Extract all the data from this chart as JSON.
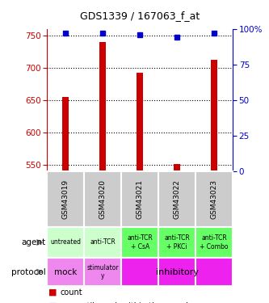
{
  "title": "GDS1339 / 167063_f_at",
  "samples": [
    "GSM43019",
    "GSM43020",
    "GSM43021",
    "GSM43022",
    "GSM43023"
  ],
  "counts": [
    655,
    740,
    692,
    551,
    712
  ],
  "percentile_ranks": [
    97,
    97,
    96,
    94,
    97
  ],
  "ylim_left": [
    540,
    760
  ],
  "ylim_right": [
    0,
    100
  ],
  "yticks_left": [
    550,
    600,
    650,
    700,
    750
  ],
  "yticks_right": [
    0,
    25,
    50,
    75,
    100
  ],
  "agent_labels": [
    "untreated",
    "anti-TCR",
    "anti-TCR\n+ CsA",
    "anti-TCR\n+ PKCi",
    "anti-TCR\n+ Combo"
  ],
  "agent_bg": [
    "#ccffcc",
    "#ccffcc",
    "#66ff66",
    "#66ff66",
    "#66ff66"
  ],
  "protocol_bg_per_col": [
    "#ee88ee",
    "#ee88ee",
    "#ee22ee",
    "#ee22ee",
    "#ee22ee"
  ],
  "bar_color": "#cc0000",
  "dot_color": "#0000cc",
  "sample_bg_color": "#cccccc",
  "bar_width": 0.18
}
